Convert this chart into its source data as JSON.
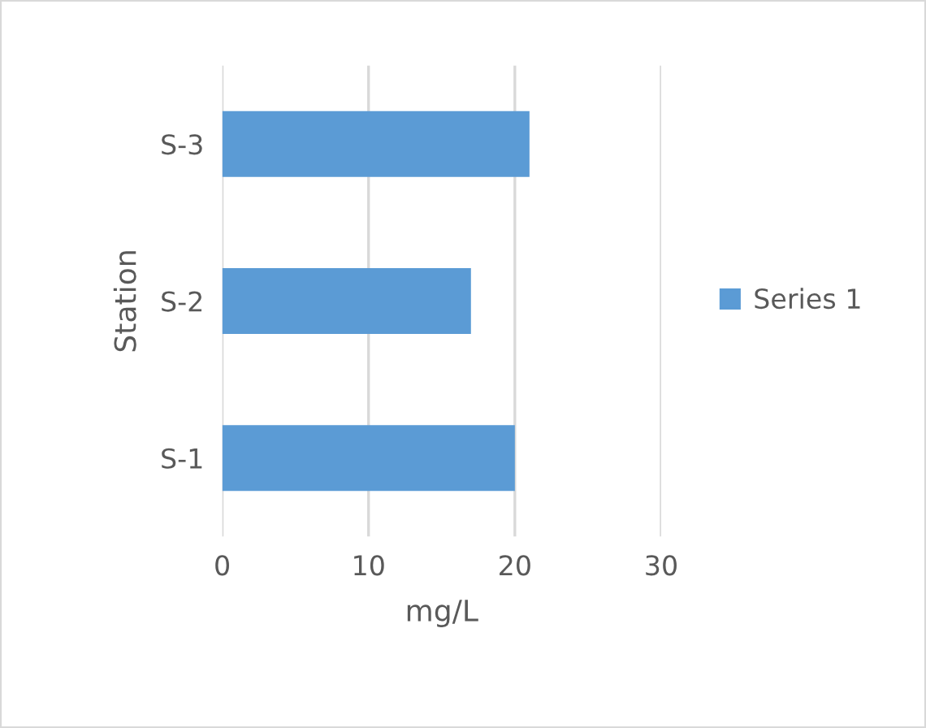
{
  "chart_data": {
    "type": "bar",
    "orientation": "horizontal",
    "xlabel": "mg/L",
    "ylabel": "Station",
    "categories": [
      "S-3",
      "S-2",
      "S-1"
    ],
    "series": [
      {
        "name": "Series 1",
        "color": "#5b9bd5",
        "values": [
          21,
          17,
          20
        ]
      }
    ],
    "xlim": [
      0,
      30
    ],
    "xticks": [
      0,
      10,
      20,
      30
    ],
    "grid": "x",
    "legend": "right"
  }
}
